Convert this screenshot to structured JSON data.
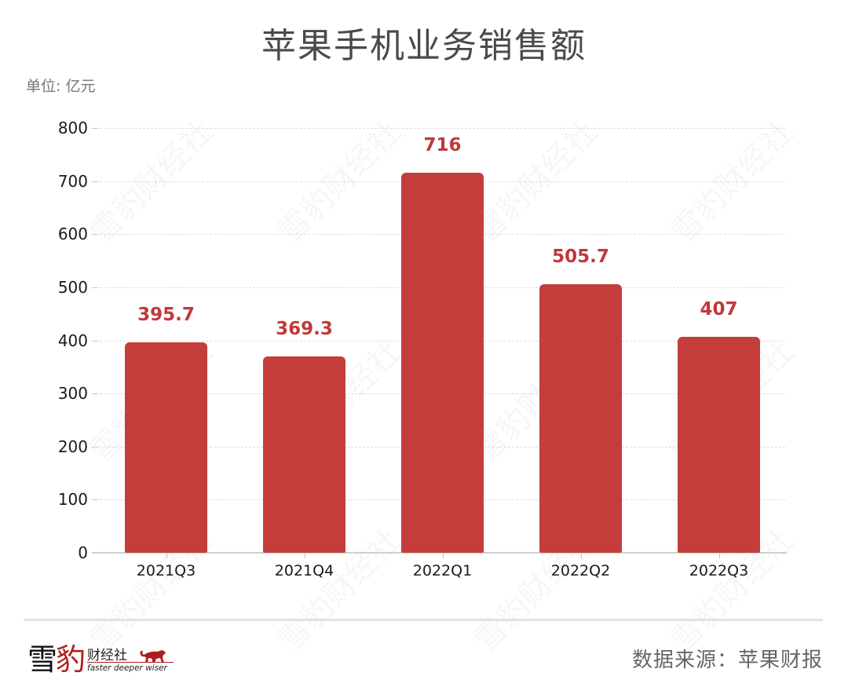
{
  "header": {
    "title": "苹果手机业务销售额",
    "unit": "单位: 亿元"
  },
  "chart_data": {
    "type": "bar",
    "title": "苹果手机业务销售额",
    "unit_label": "单位: 亿元",
    "xlabel": "",
    "ylabel": "亿元",
    "categories": [
      "2021Q3",
      "2021Q4",
      "2022Q1",
      "2022Q2",
      "2022Q3"
    ],
    "values": [
      395.7,
      369.3,
      716,
      505.7,
      407
    ],
    "value_labels": [
      "395.7",
      "369.3",
      "716",
      "505.7",
      "407"
    ],
    "ylim": [
      0,
      800
    ],
    "yticks": [
      0,
      100,
      200,
      300,
      400,
      500,
      600,
      700,
      800
    ],
    "ytick_labels": [
      "0",
      "100",
      "200",
      "300",
      "400",
      "500",
      "600",
      "700",
      "800"
    ],
    "grid": true,
    "legend": null,
    "bar_color": "#C43D3B",
    "label_color": "#C0393B"
  },
  "footer": {
    "logo": {
      "char1": "雪",
      "char2": "豹",
      "name": "财经社",
      "slogan": "faster deeper wiser"
    },
    "source": "数据来源：苹果财报"
  },
  "watermark": "雪豹财经社"
}
